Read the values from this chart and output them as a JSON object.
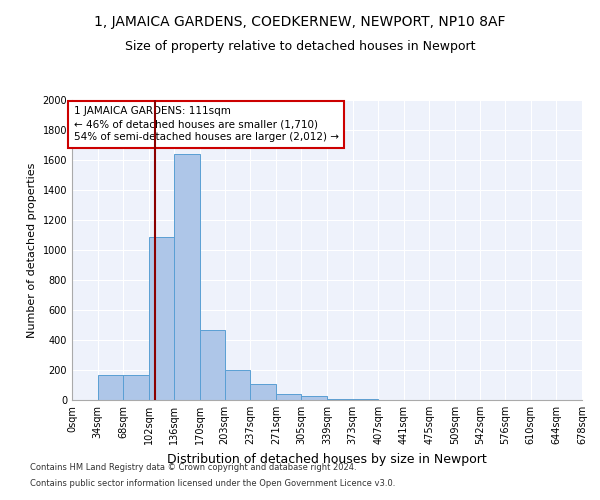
{
  "title": "1, JAMAICA GARDENS, COEDKERNEW, NEWPORT, NP10 8AF",
  "subtitle": "Size of property relative to detached houses in Newport",
  "xlabel": "Distribution of detached houses by size in Newport",
  "ylabel": "Number of detached properties",
  "footnote1": "Contains HM Land Registry data © Crown copyright and database right 2024.",
  "footnote2": "Contains public sector information licensed under the Open Government Licence v3.0.",
  "bar_edges": [
    0,
    34,
    68,
    102,
    136,
    170,
    203,
    237,
    271,
    305,
    339,
    373,
    407,
    441,
    475,
    509,
    542,
    576,
    610,
    644,
    678
  ],
  "bar_heights": [
    0,
    165,
    165,
    1090,
    1640,
    470,
    200,
    105,
    40,
    30,
    10,
    5,
    3,
    2,
    2,
    1,
    1,
    1,
    1,
    1
  ],
  "bar_color": "#aec6e8",
  "bar_edgecolor": "#5a9fd4",
  "property_size": 111,
  "vline_color": "#8b0000",
  "annotation_line1": "1 JAMAICA GARDENS: 111sqm",
  "annotation_line2": "← 46% of detached houses are smaller (1,710)",
  "annotation_line3": "54% of semi-detached houses are larger (2,012) →",
  "annotation_box_color": "#ffffff",
  "annotation_box_edgecolor": "#cc0000",
  "ylim": [
    0,
    2000
  ],
  "yticks": [
    0,
    200,
    400,
    600,
    800,
    1000,
    1200,
    1400,
    1600,
    1800,
    2000
  ],
  "bg_color": "#eef2fb",
  "title_fontsize": 10,
  "subtitle_fontsize": 9,
  "xlabel_fontsize": 9,
  "ylabel_fontsize": 8,
  "tick_fontsize": 7,
  "annot_fontsize": 7.5
}
